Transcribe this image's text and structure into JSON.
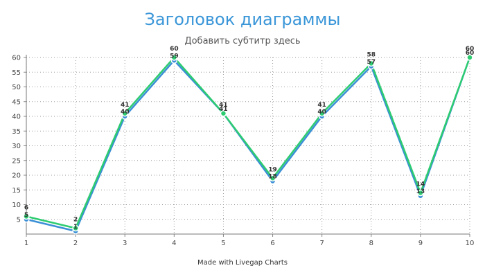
{
  "chart_data": {
    "type": "line",
    "title": "Заголовок диаграммы",
    "subtitle": "Добавить субтитр здесь",
    "credit": "Made with Livegap Charts",
    "x": [
      1,
      2,
      3,
      4,
      5,
      6,
      7,
      8,
      9,
      10
    ],
    "series": [
      {
        "color": "#3b8fd6",
        "values": [
          5,
          1,
          40,
          59,
          41,
          18,
          40,
          57,
          13,
          60
        ]
      },
      {
        "color": "#2ecc71",
        "values": [
          6,
          2,
          41,
          60,
          41,
          19,
          41,
          58,
          14,
          60
        ]
      }
    ],
    "ylim": [
      0,
      60
    ],
    "yticks": [
      5,
      10,
      15,
      20,
      25,
      30,
      35,
      40,
      45,
      50,
      55,
      60
    ],
    "grid": true,
    "legend": "none"
  }
}
